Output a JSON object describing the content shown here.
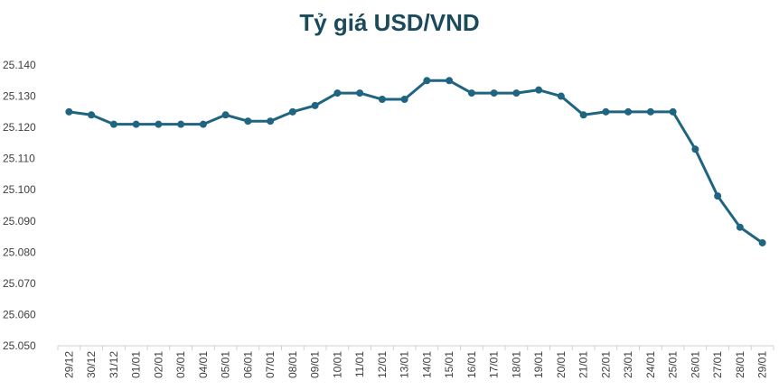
{
  "chart_data": {
    "type": "line",
    "title": "Tỷ giá USD/VND",
    "xlabel": "",
    "ylabel": "",
    "ylim": [
      25050,
      25140
    ],
    "y_ticks": [
      25050,
      25060,
      25070,
      25080,
      25090,
      25100,
      25110,
      25120,
      25130,
      25140
    ],
    "y_tick_labels": [
      "25.050",
      "25.060",
      "25.070",
      "25.080",
      "25.090",
      "25.100",
      "25.110",
      "25.120",
      "25.130",
      "25.140"
    ],
    "grid": false,
    "legend": "none",
    "line_color": "#1f6480",
    "categories": [
      "29/12",
      "30/12",
      "31/12",
      "01/01",
      "02/01",
      "03/01",
      "04/01",
      "05/01",
      "06/01",
      "07/01",
      "08/01",
      "09/01",
      "10/01",
      "11/01",
      "12/01",
      "13/01",
      "14/01",
      "15/01",
      "16/01",
      "17/01",
      "18/01",
      "19/01",
      "20/01",
      "21/01",
      "22/01",
      "23/01",
      "24/01",
      "25/01",
      "26/01",
      "27/01",
      "28/01",
      "29/01"
    ],
    "series": [
      {
        "values": [
          25125,
          25124,
          25121,
          25121,
          25121,
          25121,
          25121,
          25124,
          25122,
          25122,
          25125,
          25127,
          25131,
          25131,
          25129,
          25129,
          25135,
          25135,
          25131,
          25131,
          25131,
          25132,
          25130,
          25124,
          25125,
          25125,
          25125,
          25125,
          25113,
          25098,
          25088,
          25083
        ]
      }
    ]
  }
}
